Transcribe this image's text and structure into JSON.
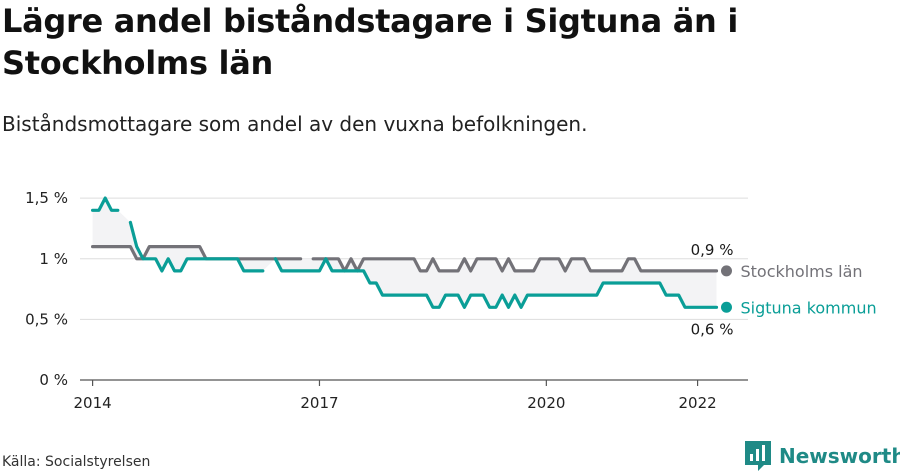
{
  "header": {
    "title": "Lägre andel biståndstagare i Sigtuna än i Stockholms län",
    "subtitle": "Biståndsmottagare som andel av den vuxna befolkningen."
  },
  "footer": {
    "source": "Källa: Socialstyrelsen",
    "brand": "Newsworthy"
  },
  "colors": {
    "stockholm": "#737278",
    "sigtuna": "#0a9e97",
    "grid": "#dddddd",
    "band": "#f3f3f5"
  },
  "icons": {
    "brand": "bar-chart-logo-icon"
  },
  "chart_data": {
    "type": "line",
    "x_ticks": [
      "2014",
      "2017",
      "2020",
      "2022"
    ],
    "y_ticks": [
      "0 %",
      "0,5 %",
      "1 %",
      "1,5 %"
    ],
    "y_tick_values": [
      0,
      0.5,
      1,
      1.5
    ],
    "ylim": [
      0,
      1.6
    ],
    "xlim": [
      "2013-11",
      "2022-09"
    ],
    "grid": true,
    "series": [
      {
        "name": "Stockholms län",
        "end_label": "0,9 %",
        "points": [
          [
            "2014-01",
            1.1
          ],
          [
            "2014-02",
            1.1
          ],
          [
            "2014-03",
            1.1
          ],
          [
            "2014-04",
            1.1
          ],
          [
            "2014-05",
            1.1
          ],
          [
            "2014-06",
            1.1
          ],
          [
            "2014-07",
            1.1
          ],
          [
            "2014-08",
            1.0
          ],
          [
            "2014-09",
            1.0
          ],
          [
            "2014-10",
            1.1
          ],
          [
            "2014-11",
            1.1
          ],
          [
            "2014-12",
            1.1
          ],
          [
            "2015-01",
            1.1
          ],
          [
            "2015-02",
            1.1
          ],
          [
            "2015-03",
            1.1
          ],
          [
            "2015-04",
            1.1
          ],
          [
            "2015-05",
            1.1
          ],
          [
            "2015-06",
            1.1
          ],
          [
            "2015-07",
            1.0
          ],
          [
            "2015-08",
            1.0
          ],
          [
            "2015-09",
            1.0
          ],
          [
            "2015-10",
            1.0
          ],
          [
            "2015-11",
            1.0
          ],
          [
            "2015-12",
            1.0
          ],
          [
            "2016-01",
            1.0
          ],
          [
            "2016-02",
            1.0
          ],
          [
            "2016-03",
            1.0
          ],
          [
            "2016-04",
            1.0
          ],
          [
            "2016-05",
            1.0
          ],
          [
            "2016-06",
            1.0
          ],
          [
            "2016-07",
            1.0
          ],
          [
            "2016-08",
            1.0
          ],
          [
            "2016-09",
            1.0
          ],
          [
            "2016-10",
            1.0
          ],
          [
            "2016-11",
            null
          ],
          [
            "2016-12",
            1.0
          ],
          [
            "2017-01",
            1.0
          ],
          [
            "2017-02",
            1.0
          ],
          [
            "2017-03",
            1.0
          ],
          [
            "2017-04",
            1.0
          ],
          [
            "2017-05",
            0.9
          ],
          [
            "2017-06",
            1.0
          ],
          [
            "2017-07",
            0.9
          ],
          [
            "2017-08",
            1.0
          ],
          [
            "2017-09",
            1.0
          ],
          [
            "2017-10",
            1.0
          ],
          [
            "2017-11",
            1.0
          ],
          [
            "2017-12",
            1.0
          ],
          [
            "2018-01",
            1.0
          ],
          [
            "2018-02",
            1.0
          ],
          [
            "2018-03",
            1.0
          ],
          [
            "2018-04",
            1.0
          ],
          [
            "2018-05",
            0.9
          ],
          [
            "2018-06",
            0.9
          ],
          [
            "2018-07",
            1.0
          ],
          [
            "2018-08",
            0.9
          ],
          [
            "2018-09",
            0.9
          ],
          [
            "2018-10",
            0.9
          ],
          [
            "2018-11",
            0.9
          ],
          [
            "2018-12",
            1.0
          ],
          [
            "2019-01",
            0.9
          ],
          [
            "2019-02",
            1.0
          ],
          [
            "2019-03",
            1.0
          ],
          [
            "2019-04",
            1.0
          ],
          [
            "2019-05",
            1.0
          ],
          [
            "2019-06",
            0.9
          ],
          [
            "2019-07",
            1.0
          ],
          [
            "2019-08",
            0.9
          ],
          [
            "2019-09",
            0.9
          ],
          [
            "2019-10",
            0.9
          ],
          [
            "2019-11",
            0.9
          ],
          [
            "2019-12",
            1.0
          ],
          [
            "2020-01",
            1.0
          ],
          [
            "2020-02",
            1.0
          ],
          [
            "2020-03",
            1.0
          ],
          [
            "2020-04",
            0.9
          ],
          [
            "2020-05",
            1.0
          ],
          [
            "2020-06",
            1.0
          ],
          [
            "2020-07",
            1.0
          ],
          [
            "2020-08",
            0.9
          ],
          [
            "2020-09",
            0.9
          ],
          [
            "2020-10",
            0.9
          ],
          [
            "2020-11",
            0.9
          ],
          [
            "2020-12",
            0.9
          ],
          [
            "2021-01",
            0.9
          ],
          [
            "2021-02",
            1.0
          ],
          [
            "2021-03",
            1.0
          ],
          [
            "2021-04",
            0.9
          ],
          [
            "2021-05",
            0.9
          ],
          [
            "2021-06",
            0.9
          ],
          [
            "2021-07",
            0.9
          ],
          [
            "2021-08",
            0.9
          ],
          [
            "2021-09",
            0.9
          ],
          [
            "2021-10",
            0.9
          ],
          [
            "2021-11",
            0.9
          ],
          [
            "2021-12",
            0.9
          ],
          [
            "2022-01",
            0.9
          ],
          [
            "2022-02",
            0.9
          ],
          [
            "2022-03",
            0.9
          ],
          [
            "2022-04",
            0.9
          ]
        ]
      },
      {
        "name": "Sigtuna kommun",
        "end_label": "0,6 %",
        "points": [
          [
            "2014-01",
            1.4
          ],
          [
            "2014-02",
            1.4
          ],
          [
            "2014-03",
            1.5
          ],
          [
            "2014-04",
            1.4
          ],
          [
            "2014-05",
            1.4
          ],
          [
            "2014-06",
            null
          ],
          [
            "2014-07",
            1.3
          ],
          [
            "2014-08",
            1.1
          ],
          [
            "2014-09",
            1.0
          ],
          [
            "2014-10",
            1.0
          ],
          [
            "2014-11",
            1.0
          ],
          [
            "2014-12",
            0.9
          ],
          [
            "2015-01",
            1.0
          ],
          [
            "2015-02",
            0.9
          ],
          [
            "2015-03",
            0.9
          ],
          [
            "2015-04",
            1.0
          ],
          [
            "2015-05",
            1.0
          ],
          [
            "2015-06",
            1.0
          ],
          [
            "2015-07",
            1.0
          ],
          [
            "2015-08",
            1.0
          ],
          [
            "2015-09",
            1.0
          ],
          [
            "2015-10",
            1.0
          ],
          [
            "2015-11",
            1.0
          ],
          [
            "2015-12",
            1.0
          ],
          [
            "2016-01",
            0.9
          ],
          [
            "2016-02",
            0.9
          ],
          [
            "2016-03",
            0.9
          ],
          [
            "2016-04",
            0.9
          ],
          [
            "2016-05",
            null
          ],
          [
            "2016-06",
            1.0
          ],
          [
            "2016-07",
            0.9
          ],
          [
            "2016-08",
            0.9
          ],
          [
            "2016-09",
            0.9
          ],
          [
            "2016-10",
            0.9
          ],
          [
            "2016-11",
            0.9
          ],
          [
            "2016-12",
            0.9
          ],
          [
            "2017-01",
            0.9
          ],
          [
            "2017-02",
            1.0
          ],
          [
            "2017-03",
            0.9
          ],
          [
            "2017-04",
            0.9
          ],
          [
            "2017-05",
            0.9
          ],
          [
            "2017-06",
            0.9
          ],
          [
            "2017-07",
            0.9
          ],
          [
            "2017-08",
            0.9
          ],
          [
            "2017-09",
            0.8
          ],
          [
            "2017-10",
            0.8
          ],
          [
            "2017-11",
            0.7
          ],
          [
            "2017-12",
            0.7
          ],
          [
            "2018-01",
            0.7
          ],
          [
            "2018-02",
            0.7
          ],
          [
            "2018-03",
            0.7
          ],
          [
            "2018-04",
            0.7
          ],
          [
            "2018-05",
            0.7
          ],
          [
            "2018-06",
            0.7
          ],
          [
            "2018-07",
            0.6
          ],
          [
            "2018-08",
            0.6
          ],
          [
            "2018-09",
            0.7
          ],
          [
            "2018-10",
            0.7
          ],
          [
            "2018-11",
            0.7
          ],
          [
            "2018-12",
            0.6
          ],
          [
            "2019-01",
            0.7
          ],
          [
            "2019-02",
            0.7
          ],
          [
            "2019-03",
            0.7
          ],
          [
            "2019-04",
            0.6
          ],
          [
            "2019-05",
            0.6
          ],
          [
            "2019-06",
            0.7
          ],
          [
            "2019-07",
            0.6
          ],
          [
            "2019-08",
            0.7
          ],
          [
            "2019-09",
            0.6
          ],
          [
            "2019-10",
            0.7
          ],
          [
            "2019-11",
            0.7
          ],
          [
            "2019-12",
            0.7
          ],
          [
            "2020-01",
            0.7
          ],
          [
            "2020-02",
            0.7
          ],
          [
            "2020-03",
            0.7
          ],
          [
            "2020-04",
            0.7
          ],
          [
            "2020-05",
            0.7
          ],
          [
            "2020-06",
            0.7
          ],
          [
            "2020-07",
            0.7
          ],
          [
            "2020-08",
            0.7
          ],
          [
            "2020-09",
            0.7
          ],
          [
            "2020-10",
            0.8
          ],
          [
            "2020-11",
            0.8
          ],
          [
            "2020-12",
            0.8
          ],
          [
            "2021-01",
            0.8
          ],
          [
            "2021-02",
            0.8
          ],
          [
            "2021-03",
            0.8
          ],
          [
            "2021-04",
            0.8
          ],
          [
            "2021-05",
            0.8
          ],
          [
            "2021-06",
            0.8
          ],
          [
            "2021-07",
            0.8
          ],
          [
            "2021-08",
            0.7
          ],
          [
            "2021-09",
            0.7
          ],
          [
            "2021-10",
            0.7
          ],
          [
            "2021-11",
            0.6
          ],
          [
            "2021-12",
            0.6
          ],
          [
            "2022-01",
            0.6
          ],
          [
            "2022-02",
            0.6
          ],
          [
            "2022-03",
            0.6
          ],
          [
            "2022-04",
            0.6
          ]
        ]
      }
    ]
  }
}
